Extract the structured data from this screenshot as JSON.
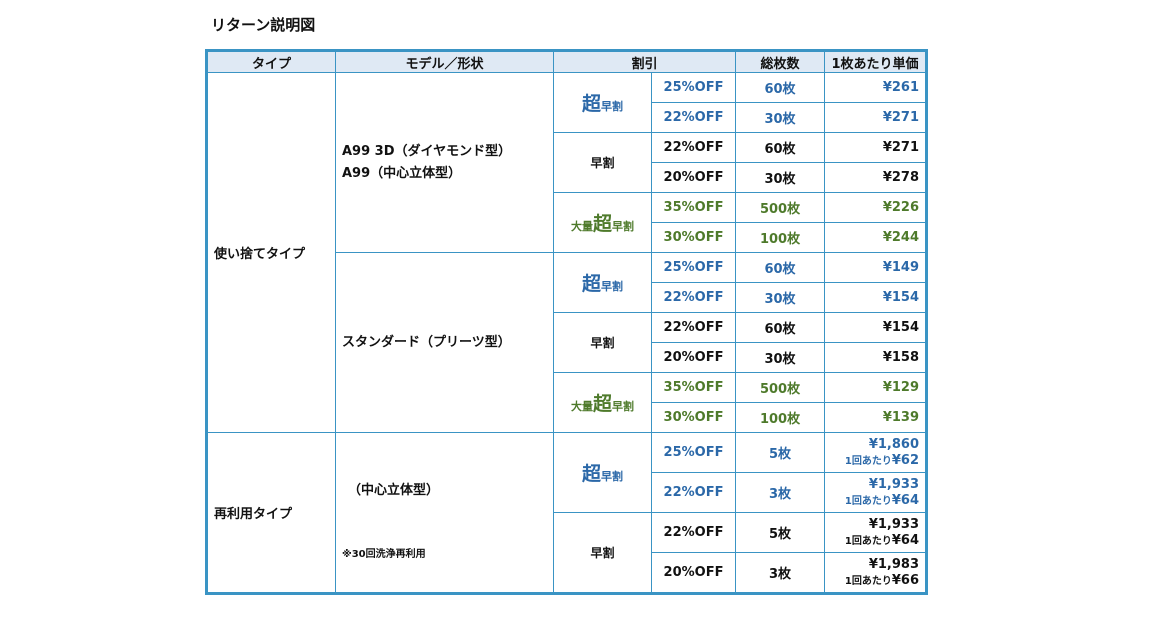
{
  "page_title": "リターン説明図",
  "headers": [
    "タイプ",
    "モデル／形状",
    "割引",
    "総枚数",
    "1枚あたり単価"
  ],
  "tiers": {
    "super": {
      "prefix": "",
      "big": "超",
      "suffix": "早割"
    },
    "early": {
      "label": "早割"
    },
    "bulk": {
      "prefix": "大量",
      "big": "超",
      "suffix": "早割"
    }
  },
  "groups": [
    {
      "type": "使い捨てタイプ",
      "models": [
        {
          "lines": [
            "A99 3D（ダイヤモンド型）",
            "A99（中心立体型）"
          ],
          "rows": [
            {
              "discount": "25%OFF",
              "qty": "60枚",
              "price": "¥261"
            },
            {
              "discount": "22%OFF",
              "qty": "30枚",
              "price": "¥271"
            },
            {
              "discount": "22%OFF",
              "qty": "60枚",
              "price": "¥271"
            },
            {
              "discount": "20%OFF",
              "qty": "30枚",
              "price": "¥278"
            },
            {
              "discount": "35%OFF",
              "qty": "500枚",
              "price": "¥226"
            },
            {
              "discount": "30%OFF",
              "qty": "100枚",
              "price": "¥244"
            }
          ]
        },
        {
          "lines": [
            "スタンダード（プリーツ型）"
          ],
          "rows": [
            {
              "discount": "25%OFF",
              "qty": "60枚",
              "price": "¥149"
            },
            {
              "discount": "22%OFF",
              "qty": "30枚",
              "price": "¥154"
            },
            {
              "discount": "22%OFF",
              "qty": "60枚",
              "price": "¥154"
            },
            {
              "discount": "20%OFF",
              "qty": "30枚",
              "price": "¥158"
            },
            {
              "discount": "35%OFF",
              "qty": "500枚",
              "price": "¥129"
            },
            {
              "discount": "30%OFF",
              "qty": "100枚",
              "price": "¥139"
            }
          ]
        }
      ]
    },
    {
      "type": "再利用タイプ",
      "models": [
        {
          "lines": [
            "（中心立体型）"
          ],
          "note": "※30回洗浄再利用",
          "rows": [
            {
              "discount": "25%OFF",
              "qty": "5枚",
              "price": "¥1,860",
              "per_use_label": "1回あたり",
              "per_use": "¥62"
            },
            {
              "discount": "22%OFF",
              "qty": "3枚",
              "price": "¥1,933",
              "per_use_label": "1回あたり",
              "per_use": "¥64"
            },
            {
              "discount": "22%OFF",
              "qty": "5枚",
              "price": "¥1,933",
              "per_use_label": "1回あたり",
              "per_use": "¥64"
            },
            {
              "discount": "20%OFF",
              "qty": "3枚",
              "price": "¥1,983",
              "per_use_label": "1回あたり",
              "per_use": "¥66"
            }
          ]
        }
      ]
    }
  ],
  "colors": {
    "border": "#3a94c4",
    "header_bg": "#dfe9f4",
    "super_text": "#2b68a8",
    "bulk_text": "#4e7a2b"
  }
}
